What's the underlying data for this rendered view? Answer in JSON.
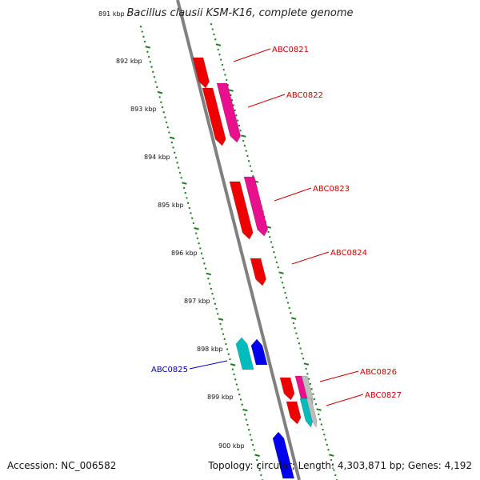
{
  "title": "Bacillus clausii KSM-K16, complete genome",
  "footer": {
    "accession": "Accession: NC_006582",
    "summary": "Topology: circular; Length: 4,303,871 bp; Genes: 4,192"
  },
  "colors": {
    "forward_label": "#cc0000",
    "reverse_label": "#0000aa",
    "backbone": "#808080",
    "tick": "#1f7a1f",
    "red_gene": "#ee0000",
    "magenta_gene": "#e8108c",
    "blue_gene": "#0000ee",
    "cyan_gene": "#00bcbc",
    "grey_gene": "#bdbdbd"
  },
  "ruler": {
    "unit": "kbp",
    "ticks": [
      "891 kbp",
      "892 kbp",
      "893 kbp",
      "894 kbp",
      "895 kbp",
      "896 kbp",
      "897 kbp",
      "898 kbp",
      "899 kbp",
      "900 kbp"
    ]
  },
  "labeled_genes": [
    {
      "name": "ABC0821",
      "strand": "forward"
    },
    {
      "name": "ABC0822",
      "strand": "forward"
    },
    {
      "name": "ABC0823",
      "strand": "forward"
    },
    {
      "name": "ABC0824",
      "strand": "forward"
    },
    {
      "name": "ABC0825",
      "strand": "reverse"
    },
    {
      "name": "ABC0826",
      "strand": "forward"
    },
    {
      "name": "ABC0827",
      "strand": "forward"
    }
  ]
}
